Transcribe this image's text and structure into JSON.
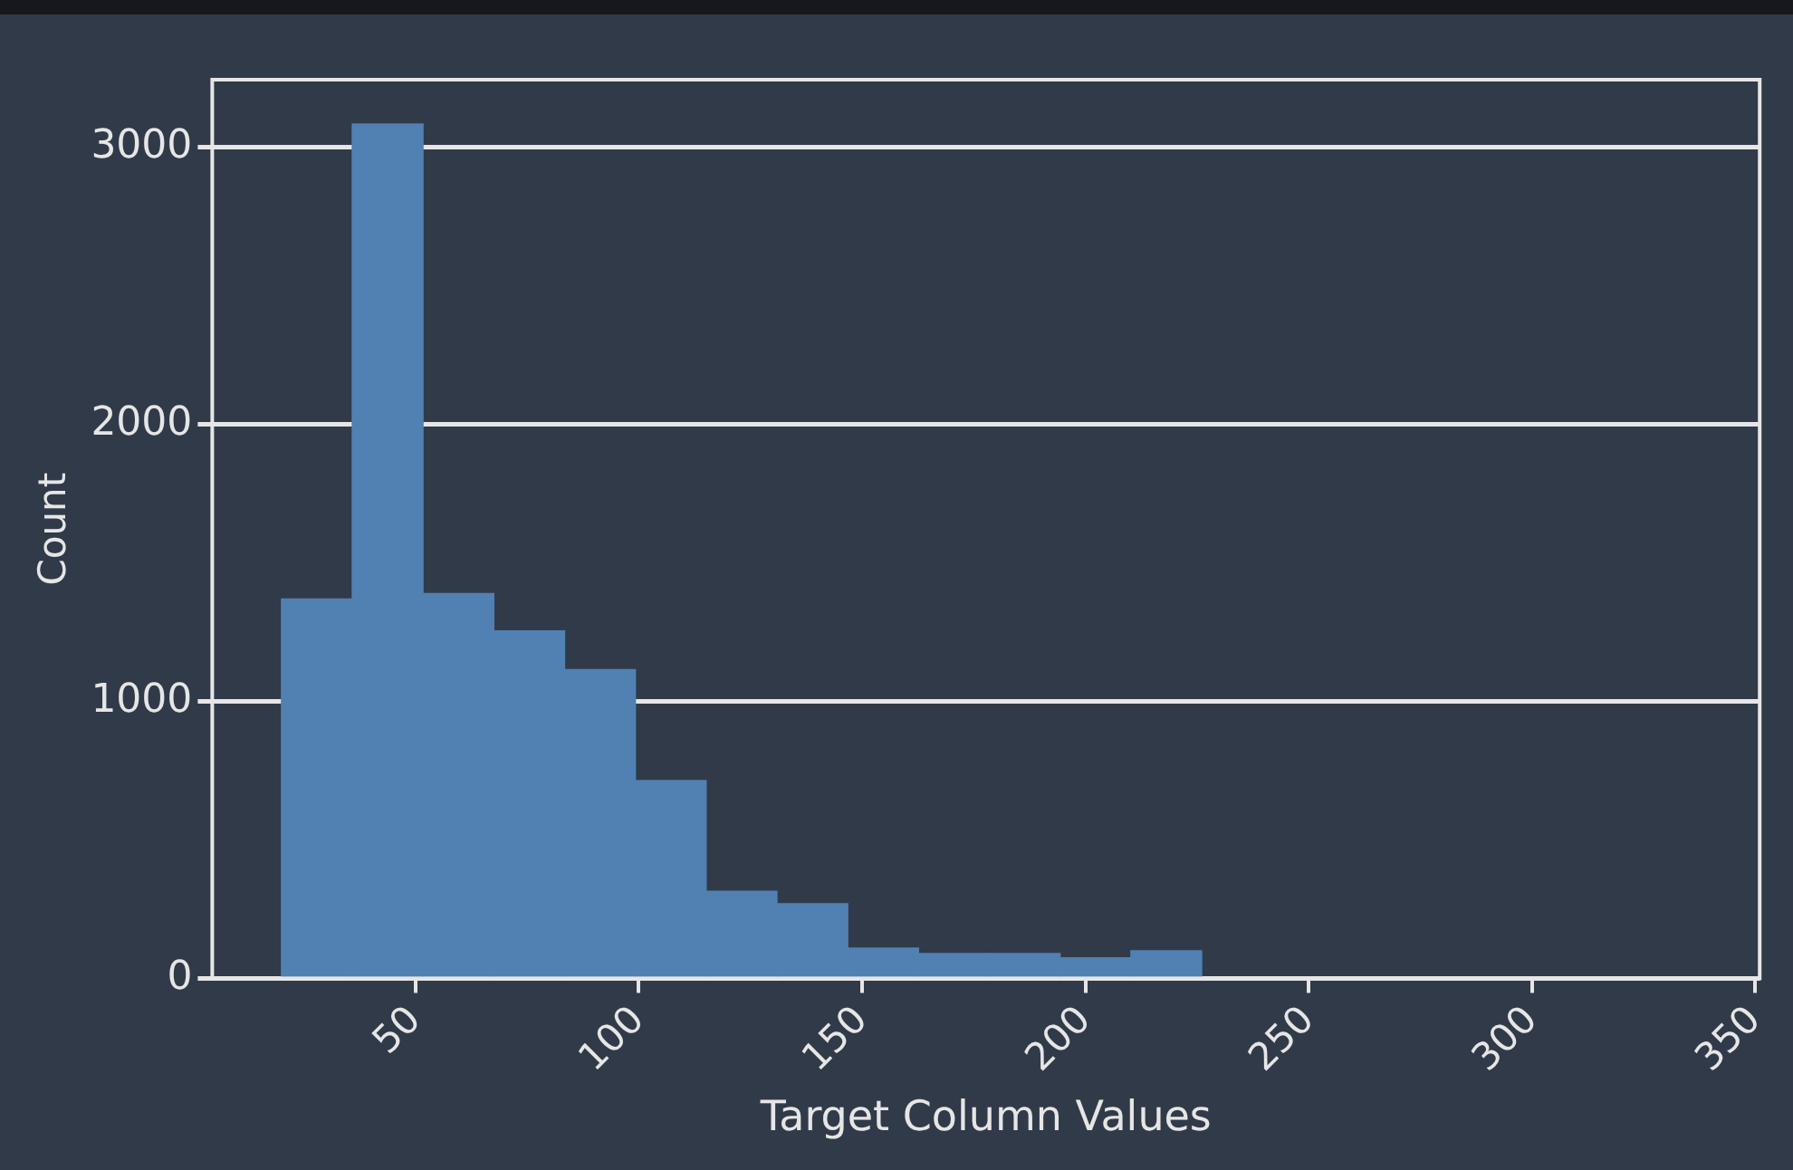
{
  "chart_data": {
    "type": "histogram",
    "xlabel": "Target Column Values",
    "ylabel": "Count",
    "bins": [
      20,
      35.85,
      51.7,
      67.55,
      83.4,
      99.25,
      115.1,
      130.95,
      146.8,
      162.65,
      178.5,
      194.35,
      210.2,
      226.05
    ],
    "values": [
      1370,
      3085,
      1390,
      1255,
      1115,
      715,
      315,
      270,
      110,
      90,
      90,
      75,
      100
    ],
    "color": "#5081b2",
    "xlim": [
      4.5,
      351
    ],
    "xticks": [
      50,
      100,
      150,
      200,
      250,
      300,
      350
    ],
    "ylim": [
      0,
      3245
    ],
    "yticks": [
      0,
      1000,
      2000,
      3000
    ],
    "grid": "y"
  }
}
